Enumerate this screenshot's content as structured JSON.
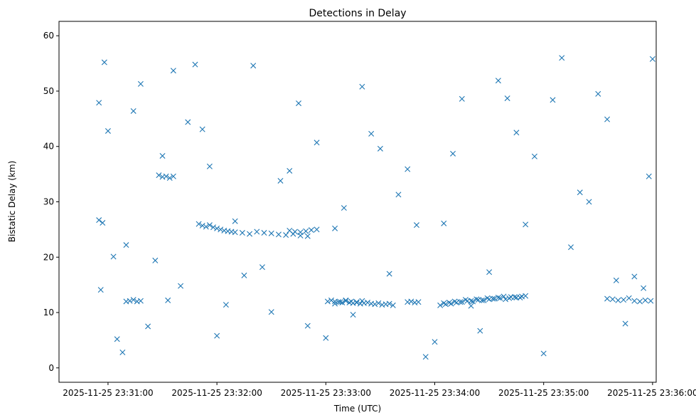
{
  "chart_data": {
    "type": "scatter",
    "title": "Detections in Delay",
    "xlabel": "Time (UTC)",
    "ylabel": "Bistatic Delay (km)",
    "x_start": "2025-11-25 23:31:00",
    "x_end": "2025-11-25 23:36:00",
    "xlim": [
      "2025-11-25 23:30:33",
      "2025-11-25 23:36:02"
    ],
    "ylim": [
      -2.6,
      62.6
    ],
    "x_ticks": [
      "2025-11-25 23:31:00",
      "2025-11-25 23:32:00",
      "2025-11-25 23:33:00",
      "2025-11-25 23:34:00",
      "2025-11-25 23:35:00",
      "2025-11-25 23:36:00"
    ],
    "y_ticks": [
      0,
      10,
      20,
      30,
      40,
      50,
      60
    ],
    "marker": "x",
    "color": "#1f77b4",
    "grid": false,
    "legend": "none",
    "series": [
      {
        "x": [
          "2025-11-25 23:30:55",
          "2025-11-25 23:30:55",
          "2025-11-25 23:30:56",
          "2025-11-25 23:30:57",
          "2025-11-25 23:30:58",
          "2025-11-25 23:31:00",
          "2025-11-25 23:31:03",
          "2025-11-25 23:31:05",
          "2025-11-25 23:31:08",
          "2025-11-25 23:31:10",
          "2025-11-25 23:31:14",
          "2025-11-25 23:31:18",
          "2025-11-25 23:31:22",
          "2025-11-25 23:31:26",
          "2025-11-25 23:31:30",
          "2025-11-25 23:31:33",
          "2025-11-25 23:31:36",
          "2025-11-25 23:31:40",
          "2025-11-25 23:31:44",
          "2025-11-25 23:31:48",
          "2025-11-25 23:31:52",
          "2025-11-25 23:31:56",
          "2025-11-25 23:32:00",
          "2025-11-25 23:32:05",
          "2025-11-25 23:32:10",
          "2025-11-25 23:32:15",
          "2025-11-25 23:32:20",
          "2025-11-25 23:32:25",
          "2025-11-25 23:32:30",
          "2025-11-25 23:32:35",
          "2025-11-25 23:32:40",
          "2025-11-25 23:32:45",
          "2025-11-25 23:32:50",
          "2025-11-25 23:32:55",
          "2025-11-25 23:33:00",
          "2025-11-25 23:33:05",
          "2025-11-25 23:33:10",
          "2025-11-25 23:33:15",
          "2025-11-25 23:33:20",
          "2025-11-25 23:33:25",
          "2025-11-25 23:33:30",
          "2025-11-25 23:33:35",
          "2025-11-25 23:33:40",
          "2025-11-25 23:33:45",
          "2025-11-25 23:33:50",
          "2025-11-25 23:33:55",
          "2025-11-25 23:34:00",
          "2025-11-25 23:34:05",
          "2025-11-25 23:34:10",
          "2025-11-25 23:34:15",
          "2025-11-25 23:34:20",
          "2025-11-25 23:34:25",
          "2025-11-25 23:34:30",
          "2025-11-25 23:34:35",
          "2025-11-25 23:34:40",
          "2025-11-25 23:34:45",
          "2025-11-25 23:34:50",
          "2025-11-25 23:34:55",
          "2025-11-25 23:35:00",
          "2025-11-25 23:35:05",
          "2025-11-25 23:35:10",
          "2025-11-25 23:35:15",
          "2025-11-25 23:35:20",
          "2025-11-25 23:35:25",
          "2025-11-25 23:35:30",
          "2025-11-25 23:35:35",
          "2025-11-25 23:35:40",
          "2025-11-25 23:35:45",
          "2025-11-25 23:35:50",
          "2025-11-25 23:35:55",
          "2025-11-25 23:35:58",
          "2025-11-25 23:36:00",
          "2025-11-25 23:31:10",
          "2025-11-25 23:31:12",
          "2025-11-25 23:31:14",
          "2025-11-25 23:31:16",
          "2025-11-25 23:31:18",
          "2025-11-25 23:31:28",
          "2025-11-25 23:31:30",
          "2025-11-25 23:31:32",
          "2025-11-25 23:31:34",
          "2025-11-25 23:31:36",
          "2025-11-25 23:31:50",
          "2025-11-25 23:31:52",
          "2025-11-25 23:31:54",
          "2025-11-25 23:31:56",
          "2025-11-25 23:31:58",
          "2025-11-25 23:32:00",
          "2025-11-25 23:32:02",
          "2025-11-25 23:32:04",
          "2025-11-25 23:32:06",
          "2025-11-25 23:32:08",
          "2025-11-25 23:32:10",
          "2025-11-25 23:32:14",
          "2025-11-25 23:32:18",
          "2025-11-25 23:32:22",
          "2025-11-25 23:32:26",
          "2025-11-25 23:32:30",
          "2025-11-25 23:32:34",
          "2025-11-25 23:32:38",
          "2025-11-25 23:32:42",
          "2025-11-25 23:32:46",
          "2025-11-25 23:32:50",
          "2025-11-25 23:33:01",
          "2025-11-25 23:33:03",
          "2025-11-25 23:33:05",
          "2025-11-25 23:33:07",
          "2025-11-25 23:33:09",
          "2025-11-25 23:33:11",
          "2025-11-25 23:33:13",
          "2025-11-25 23:33:15",
          "2025-11-25 23:33:17",
          "2025-11-25 23:33:19",
          "2025-11-25 23:33:21",
          "2025-11-25 23:33:23",
          "2025-11-25 23:33:25",
          "2025-11-25 23:33:27",
          "2025-11-25 23:33:29",
          "2025-11-25 23:33:31",
          "2025-11-25 23:33:33",
          "2025-11-25 23:33:35",
          "2025-11-25 23:33:37",
          "2025-11-25 23:33:45",
          "2025-11-25 23:33:47",
          "2025-11-25 23:33:49",
          "2025-11-25 23:33:51",
          "2025-11-25 23:34:03",
          "2025-11-25 23:34:06",
          "2025-11-25 23:34:09",
          "2025-11-25 23:34:12",
          "2025-11-25 23:34:15",
          "2025-11-25 23:34:18",
          "2025-11-25 23:34:21",
          "2025-11-25 23:34:24",
          "2025-11-25 23:34:27",
          "2025-11-25 23:34:30",
          "2025-11-25 23:34:33",
          "2025-11-25 23:34:36",
          "2025-11-25 23:34:39",
          "2025-11-25 23:34:42",
          "2025-11-25 23:34:45",
          "2025-11-25 23:34:48",
          "2025-11-25 23:35:35",
          "2025-11-25 23:35:38",
          "2025-11-25 23:35:41",
          "2025-11-25 23:35:44",
          "2025-11-25 23:35:47",
          "2025-11-25 23:35:50",
          "2025-11-25 23:35:53",
          "2025-11-25 23:35:56",
          "2025-11-25 23:35:59",
          "2025-11-25 23:32:40",
          "2025-11-25 23:32:43",
          "2025-11-25 23:32:46",
          "2025-11-25 23:32:49",
          "2025-11-25 23:32:52",
          "2025-11-25 23:32:55",
          "2025-11-25 23:33:05",
          "2025-11-25 23:33:08",
          "2025-11-25 23:33:11",
          "2025-11-25 23:33:14",
          "2025-11-25 23:33:17",
          "2025-11-25 23:33:20",
          "2025-11-25 23:34:05",
          "2025-11-25 23:34:08",
          "2025-11-25 23:34:11",
          "2025-11-25 23:34:14",
          "2025-11-25 23:34:17",
          "2025-11-25 23:34:20",
          "2025-11-25 23:34:23",
          "2025-11-25 23:34:26",
          "2025-11-25 23:34:29",
          "2025-11-25 23:34:32",
          "2025-11-25 23:34:35",
          "2025-11-25 23:34:38",
          "2025-11-25 23:34:41",
          "2025-11-25 23:34:44",
          "2025-11-25 23:34:47",
          "2025-11-25 23:34:50"
        ],
        "y": [
          26.7,
          47.9,
          14.1,
          26.2,
          55.2,
          42.8,
          20.1,
          5.2,
          2.8,
          22.2,
          46.4,
          51.3,
          7.5,
          19.4,
          38.3,
          12.2,
          53.7,
          14.8,
          44.4,
          54.8,
          43.1,
          36.4,
          5.8,
          11.4,
          26.5,
          16.7,
          54.6,
          18.2,
          10.1,
          33.8,
          35.6,
          47.8,
          7.6,
          40.7,
          5.4,
          25.2,
          28.9,
          9.6,
          50.8,
          42.3,
          39.6,
          17.0,
          31.3,
          35.9,
          25.8,
          2.0,
          4.7,
          26.1,
          38.7,
          48.6,
          11.2,
          6.7,
          17.3,
          51.9,
          48.7,
          42.5,
          25.9,
          38.2,
          2.6,
          48.4,
          56.0,
          21.8,
          31.7,
          30.0,
          49.5,
          44.9,
          15.8,
          8.0,
          16.5,
          14.4,
          34.6,
          55.8,
          12.0,
          12.1,
          12.3,
          12.0,
          12.1,
          34.8,
          34.5,
          34.6,
          34.3,
          34.6,
          26.0,
          25.7,
          25.5,
          25.8,
          25.4,
          25.2,
          25.0,
          24.8,
          24.7,
          24.6,
          24.5,
          24.4,
          24.2,
          24.6,
          24.4,
          24.3,
          24.1,
          24.0,
          24.2,
          23.9,
          23.8,
          12.0,
          12.2,
          12.0,
          11.9,
          11.8,
          12.1,
          11.8,
          11.7,
          11.9,
          11.6,
          11.7,
          11.8,
          11.6,
          11.5,
          11.7,
          11.4,
          11.5,
          11.6,
          11.3,
          11.9,
          12.0,
          11.8,
          11.9,
          11.3,
          11.5,
          11.6,
          11.8,
          11.9,
          12.1,
          12.0,
          12.3,
          12.2,
          12.4,
          12.5,
          12.6,
          12.4,
          12.8,
          12.7,
          12.9,
          12.5,
          12.4,
          12.2,
          12.3,
          12.6,
          12.1,
          12.0,
          12.2,
          12.1,
          24.8,
          24.6,
          24.5,
          24.7,
          24.9,
          25.0,
          11.6,
          11.9,
          12.2,
          12.0,
          11.8,
          12.1,
          11.7,
          11.8,
          12.0,
          11.9,
          12.3,
          12.1,
          12.4,
          12.2,
          12.6,
          12.5,
          12.7,
          12.9,
          12.6,
          12.8,
          12.7,
          13.0
        ]
      }
    ]
  }
}
